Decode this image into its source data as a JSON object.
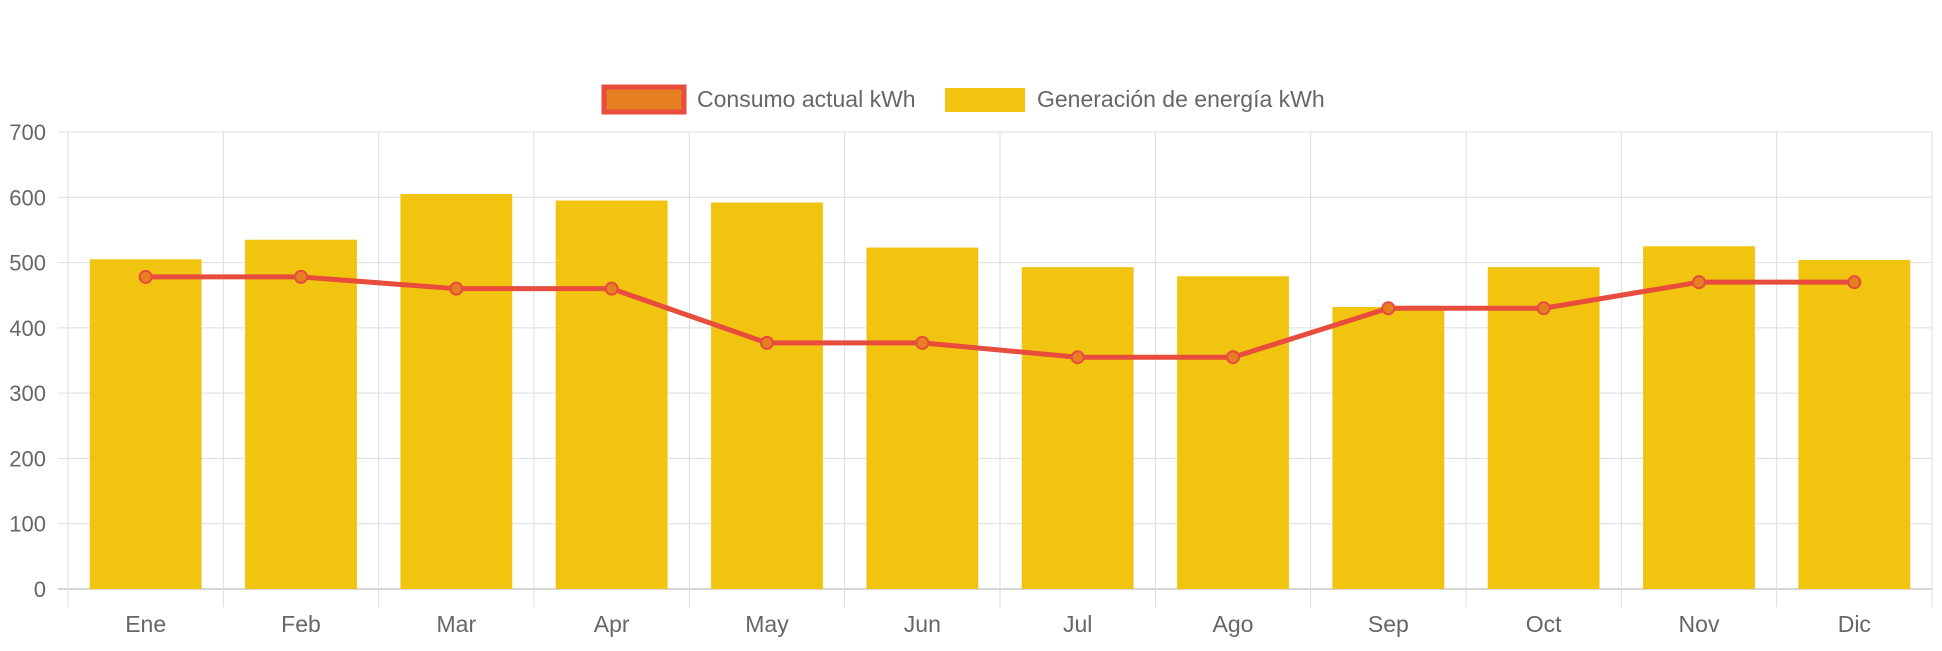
{
  "chart_data": {
    "type": "bar",
    "categories": [
      "Ene",
      "Feb",
      "Mar",
      "Apr",
      "May",
      "Jun",
      "Jul",
      "Ago",
      "Sep",
      "Oct",
      "Nov",
      "Dic"
    ],
    "series": [
      {
        "name": "Consumo actual kWh",
        "type": "line",
        "values": [
          478,
          478,
          460,
          460,
          377,
          377,
          355,
          355,
          430,
          430,
          470,
          470
        ],
        "color": "#e74c3c",
        "fill_color": "#e67e22"
      },
      {
        "name": "Generación de energía kWh",
        "type": "bar",
        "values": [
          505,
          535,
          605,
          595,
          592,
          523,
          493,
          479,
          432,
          493,
          525,
          504
        ],
        "color": "#f1c40f"
      }
    ],
    "ylim": [
      0,
      700
    ],
    "yticks": [
      0,
      100,
      200,
      300,
      400,
      500,
      600,
      700
    ],
    "grid": true,
    "legend_position": "top-center",
    "title": "",
    "xlabel": "",
    "ylabel": ""
  }
}
